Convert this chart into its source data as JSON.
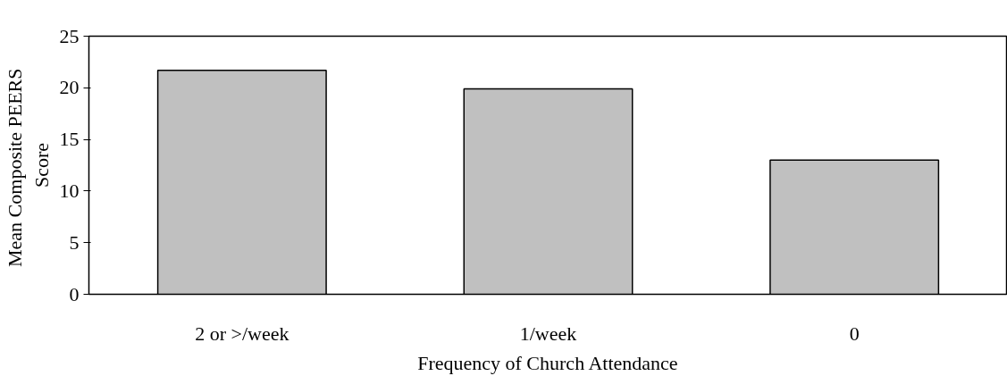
{
  "chart_data": {
    "type": "bar",
    "xlabel": "Frequency of Church Attendance",
    "ylabel": "Mean Composite  PEERS\nScore",
    "categories": [
      "2 or >/week",
      "1/week",
      "0"
    ],
    "values": [
      21.7,
      19.9,
      13.0
    ],
    "color": "#c0c0c0",
    "ylim": [
      0,
      25
    ],
    "yticks": [
      0,
      5,
      10,
      15,
      20,
      25
    ],
    "grid": false
  }
}
